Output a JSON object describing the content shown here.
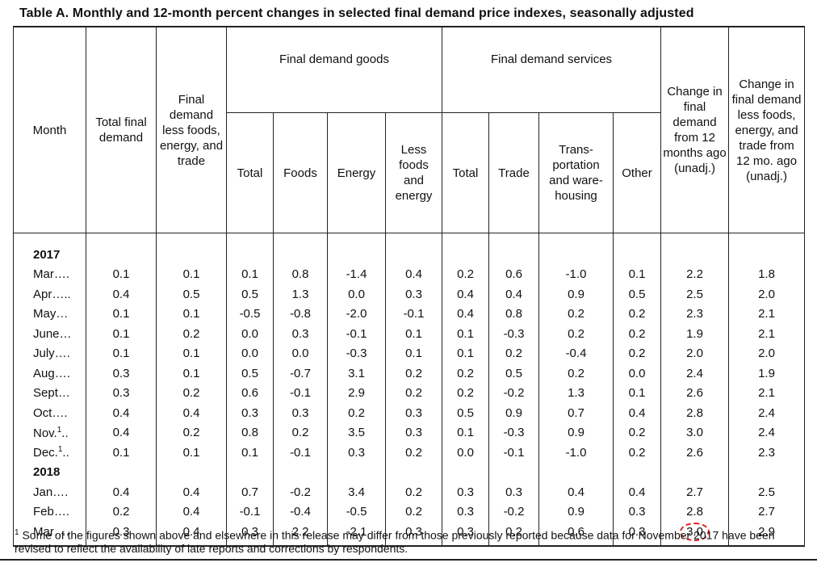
{
  "title": "Table A. Monthly and 12-month percent changes in selected final demand price indexes, seasonally adjusted",
  "headers": {
    "month": "Month",
    "total": "Total final demand",
    "less": "Final demand less foods, energy, and trade",
    "goods_group": "Final demand goods",
    "services_group": "Final demand services",
    "goods": [
      "Total",
      "Foods",
      "Energy",
      "Less foods and energy"
    ],
    "services": [
      "Total",
      "Trade",
      "Trans- portation and ware- housing",
      "Other"
    ],
    "change12": "Change in final demand from 12 months ago (unadj.)",
    "changeX": "Change in final demand less foods, energy, and trade from 12 mo. ago (unadj.)"
  },
  "years": [
    "2017",
    "2018"
  ],
  "rows": [
    {
      "month": "Mar….",
      "v": [
        "0.1",
        "0.1",
        "0.1",
        "0.8",
        "-1.4",
        "0.4",
        "0.2",
        "0.6",
        "-1.0",
        "0.1",
        "2.2",
        "1.8"
      ]
    },
    {
      "month": "Apr…..",
      "v": [
        "0.4",
        "0.5",
        "0.5",
        "1.3",
        "0.0",
        "0.3",
        "0.4",
        "0.4",
        "0.9",
        "0.5",
        "2.5",
        "2.0"
      ]
    },
    {
      "month": "May…",
      "v": [
        "0.1",
        "0.1",
        "-0.5",
        "-0.8",
        "-2.0",
        "-0.1",
        "0.4",
        "0.8",
        "0.2",
        "0.2",
        "2.3",
        "2.1"
      ]
    },
    {
      "month": "June…",
      "v": [
        "0.1",
        "0.2",
        "0.0",
        "0.3",
        "-0.1",
        "0.1",
        "0.1",
        "-0.3",
        "0.2",
        "0.2",
        "1.9",
        "2.1"
      ]
    },
    {
      "month": "July….",
      "v": [
        "0.1",
        "0.1",
        "0.0",
        "0.0",
        "-0.3",
        "0.1",
        "0.1",
        "0.2",
        "-0.4",
        "0.2",
        "2.0",
        "2.0"
      ]
    },
    {
      "month": "Aug….",
      "v": [
        "0.3",
        "0.1",
        "0.5",
        "-0.7",
        "3.1",
        "0.2",
        "0.2",
        "0.5",
        "0.2",
        "0.0",
        "2.4",
        "1.9"
      ]
    },
    {
      "month": "Sept…",
      "v": [
        "0.3",
        "0.2",
        "0.6",
        "-0.1",
        "2.9",
        "0.2",
        "0.2",
        "-0.2",
        "1.3",
        "0.1",
        "2.6",
        "2.1"
      ]
    },
    {
      "month": "Oct….",
      "v": [
        "0.4",
        "0.4",
        "0.3",
        "0.3",
        "0.2",
        "0.3",
        "0.5",
        "0.9",
        "0.7",
        "0.4",
        "2.8",
        "2.4"
      ]
    },
    {
      "month": "Nov.",
      "sup": "1",
      "dots": "..",
      "v": [
        "0.4",
        "0.2",
        "0.8",
        "0.2",
        "3.5",
        "0.3",
        "0.1",
        "-0.3",
        "0.9",
        "0.2",
        "3.0",
        "2.4"
      ]
    },
    {
      "month": "Dec.",
      "sup": "1",
      "dots": "..",
      "v": [
        "0.1",
        "0.1",
        "0.1",
        "-0.1",
        "0.3",
        "0.2",
        "0.0",
        "-0.1",
        "-1.0",
        "0.2",
        "2.6",
        "2.3"
      ]
    },
    {
      "month": "Jan….",
      "v": [
        "0.4",
        "0.4",
        "0.7",
        "-0.2",
        "3.4",
        "0.2",
        "0.3",
        "0.3",
        "0.4",
        "0.4",
        "2.7",
        "2.5"
      ]
    },
    {
      "month": "Feb….",
      "v": [
        "0.2",
        "0.4",
        "-0.1",
        "-0.4",
        "-0.5",
        "0.2",
        "0.3",
        "-0.2",
        "0.9",
        "0.3",
        "2.8",
        "2.7"
      ]
    },
    {
      "month": "Mar….",
      "v": [
        "0.3",
        "0.4",
        "0.3",
        "2.2",
        "-2.1",
        "0.3",
        "0.3",
        "0.2",
        "0.6",
        "0.3",
        "3.0",
        "2.9"
      ]
    }
  ],
  "highlight_color": "#dd2222",
  "footnote_mark": "1",
  "footnote": "Some of the figures shown above and elsewhere in this release may differ from those previously reported because data for November 2017 have been revised to reflect the availability of late reports and corrections by respondents."
}
